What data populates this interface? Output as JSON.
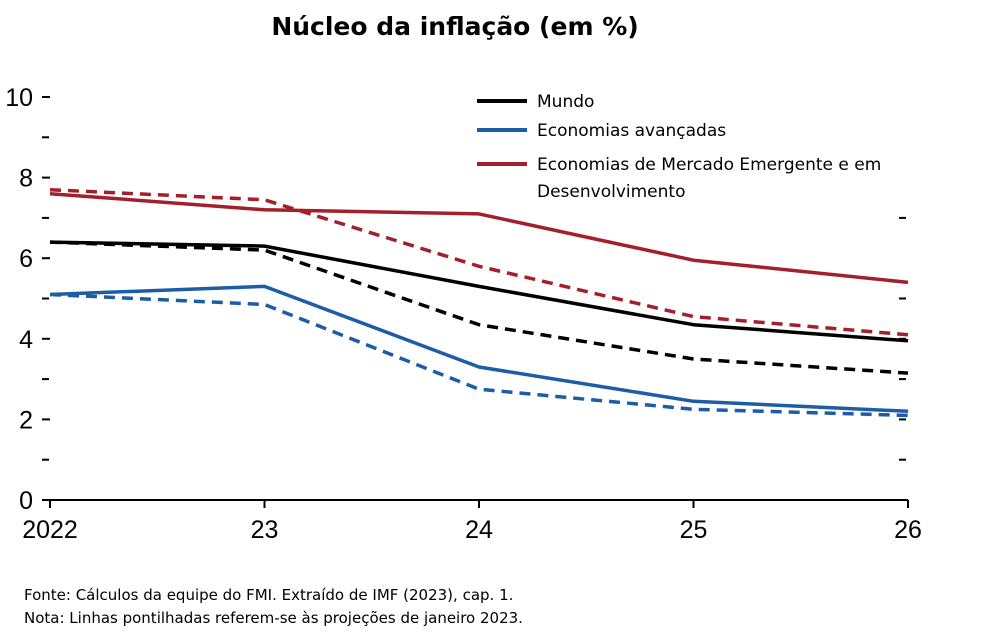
{
  "chart_data": {
    "type": "line",
    "title": "Núcleo da inflação  (em %)",
    "x_tick_labels": [
      "2022",
      "23",
      "24",
      "25",
      "26"
    ],
    "x": [
      2022,
      2023,
      2024,
      2025,
      2026
    ],
    "ylim": [
      0,
      10
    ],
    "y_tick_labels": [
      "0",
      "2",
      "4",
      "6",
      "8",
      "10"
    ],
    "y_ticks": [
      0,
      2,
      4,
      6,
      8,
      10
    ],
    "y_minor_ticks": [
      1,
      3,
      5,
      7,
      9
    ],
    "grid": false,
    "legend_position": "top-right",
    "series": [
      {
        "name": "Mundo",
        "color": "#000000",
        "style": "solid",
        "values": [
          6.4,
          6.3,
          5.3,
          4.35,
          3.95
        ]
      },
      {
        "name": "Mundo",
        "color": "#000000",
        "style": "dashed",
        "values": [
          6.4,
          6.2,
          4.35,
          3.5,
          3.15
        ]
      },
      {
        "name": "Economias avançadas",
        "color": "#1c5da6",
        "style": "solid",
        "values": [
          5.1,
          5.3,
          3.3,
          2.45,
          2.2
        ]
      },
      {
        "name": "Economias avançadas",
        "color": "#1c5da6",
        "style": "dashed",
        "values": [
          5.1,
          4.85,
          2.75,
          2.25,
          2.1
        ]
      },
      {
        "name": "Economias de Mercado Emergente e em Desenvolvimento",
        "color": "#a21f2b",
        "style": "solid",
        "values": [
          7.6,
          7.2,
          7.1,
          5.95,
          5.4
        ]
      },
      {
        "name": "Economias de Mercado Emergente e em Desenvolvimento",
        "color": "#a21f2b",
        "style": "dashed",
        "values": [
          7.7,
          7.45,
          5.8,
          4.55,
          4.1
        ]
      }
    ],
    "legend": [
      {
        "label_lines": [
          "Mundo"
        ],
        "color": "#000000"
      },
      {
        "label_lines": [
          "Economias avançadas"
        ],
        "color": "#1c5da6"
      },
      {
        "label_lines": [
          "Economias de Mercado Emergente e em",
          "Desenvolvimento"
        ],
        "color": "#a21f2b"
      }
    ]
  },
  "notes": {
    "source": "Fonte: Cálculos da equipe do FMI. Extraído de IMF (2023), cap. 1.",
    "note": "Nota: Linhas pontilhadas referem-se às projeções de janeiro 2023."
  }
}
